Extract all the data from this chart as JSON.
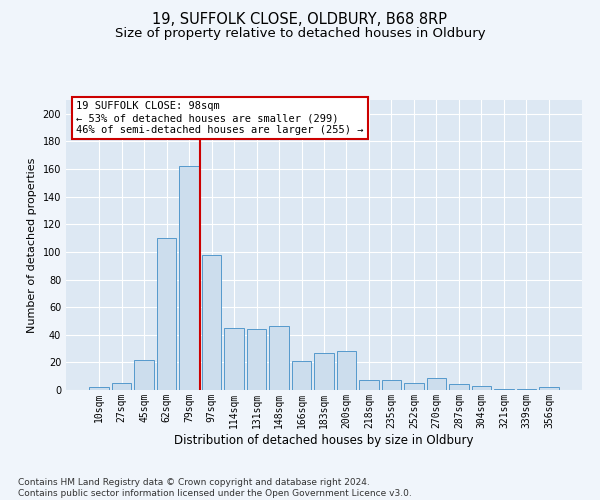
{
  "title1": "19, SUFFOLK CLOSE, OLDBURY, B68 8RP",
  "title2": "Size of property relative to detached houses in Oldbury",
  "xlabel": "Distribution of detached houses by size in Oldbury",
  "ylabel": "Number of detached properties",
  "categories": [
    "10sqm",
    "27sqm",
    "45sqm",
    "62sqm",
    "79sqm",
    "97sqm",
    "114sqm",
    "131sqm",
    "148sqm",
    "166sqm",
    "183sqm",
    "200sqm",
    "218sqm",
    "235sqm",
    "252sqm",
    "270sqm",
    "287sqm",
    "304sqm",
    "321sqm",
    "339sqm",
    "356sqm"
  ],
  "values": [
    2,
    5,
    22,
    110,
    162,
    98,
    45,
    44,
    46,
    21,
    27,
    28,
    7,
    7,
    5,
    9,
    4,
    3,
    1,
    1,
    2
  ],
  "bar_color": "#ccdded",
  "bar_edge_color": "#5599cc",
  "vline_x": 4.5,
  "vline_color": "#cc0000",
  "annotation_text": "19 SUFFOLK CLOSE: 98sqm\n← 53% of detached houses are smaller (299)\n46% of semi-detached houses are larger (255) →",
  "annotation_box_color": "#ffffff",
  "annotation_box_edge": "#cc0000",
  "ylim": [
    0,
    210
  ],
  "yticks": [
    0,
    20,
    40,
    60,
    80,
    100,
    120,
    140,
    160,
    180,
    200
  ],
  "footer": "Contains HM Land Registry data © Crown copyright and database right 2024.\nContains public sector information licensed under the Open Government Licence v3.0.",
  "background_color": "#dde8f3",
  "grid_color": "#ffffff",
  "title1_fontsize": 10.5,
  "title2_fontsize": 9.5,
  "xlabel_fontsize": 8.5,
  "ylabel_fontsize": 8,
  "tick_fontsize": 7,
  "annotation_fontsize": 7.5,
  "footer_fontsize": 6.5
}
